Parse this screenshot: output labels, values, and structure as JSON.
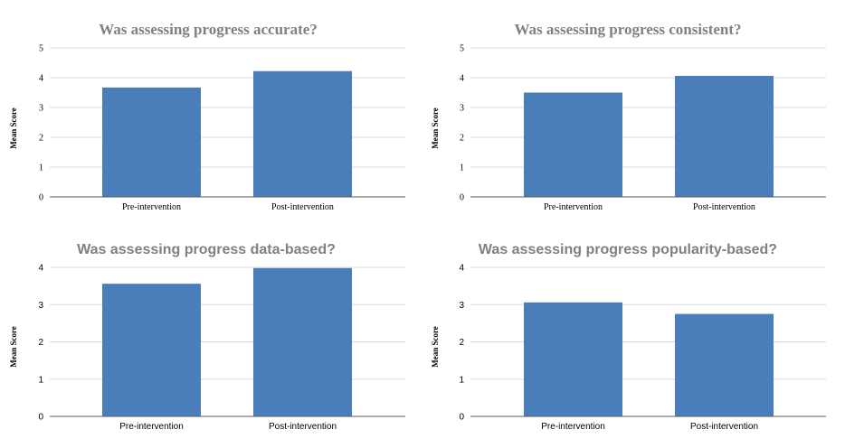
{
  "ylabel": "Mean Score",
  "colors": {
    "bar": "#4A7EBB",
    "title": "#808080",
    "grid": "#D9D9D9",
    "axis": "#595959",
    "text": "#000000"
  },
  "chart_data": [
    {
      "type": "bar",
      "title": "Was assessing progress accurate?",
      "categories": [
        "Pre-intervention",
        "Post-intervention"
      ],
      "values": [
        3.67,
        4.22
      ],
      "ylabel": "Mean Score",
      "ylim": [
        0,
        5
      ],
      "yticks": [
        0,
        1,
        2,
        3,
        4,
        5
      ],
      "grid": true
    },
    {
      "type": "bar",
      "title": "Was assessing progress consistent?",
      "categories": [
        "Pre-intervention",
        "Post-intervention"
      ],
      "values": [
        3.5,
        4.06
      ],
      "ylabel": "Mean Score",
      "ylim": [
        0,
        5
      ],
      "yticks": [
        0,
        1,
        2,
        3,
        4,
        5
      ],
      "grid": true
    },
    {
      "type": "bar",
      "title": "Was assessing progress data-based?",
      "categories": [
        "Pre-intervention",
        "Post-intervention"
      ],
      "values": [
        3.56,
        3.98
      ],
      "ylabel": "Mean Score",
      "ylim": [
        0,
        4
      ],
      "yticks": [
        0,
        1,
        2,
        3,
        4
      ],
      "grid": true
    },
    {
      "type": "bar",
      "title": "Was assessing progress popularity-based?",
      "categories": [
        "Pre-intervention",
        "Post-intervention"
      ],
      "values": [
        3.06,
        2.75
      ],
      "ylabel": "Mean Score",
      "ylim": [
        0,
        4
      ],
      "yticks": [
        0,
        1,
        2,
        3,
        4
      ],
      "grid": true
    }
  ]
}
